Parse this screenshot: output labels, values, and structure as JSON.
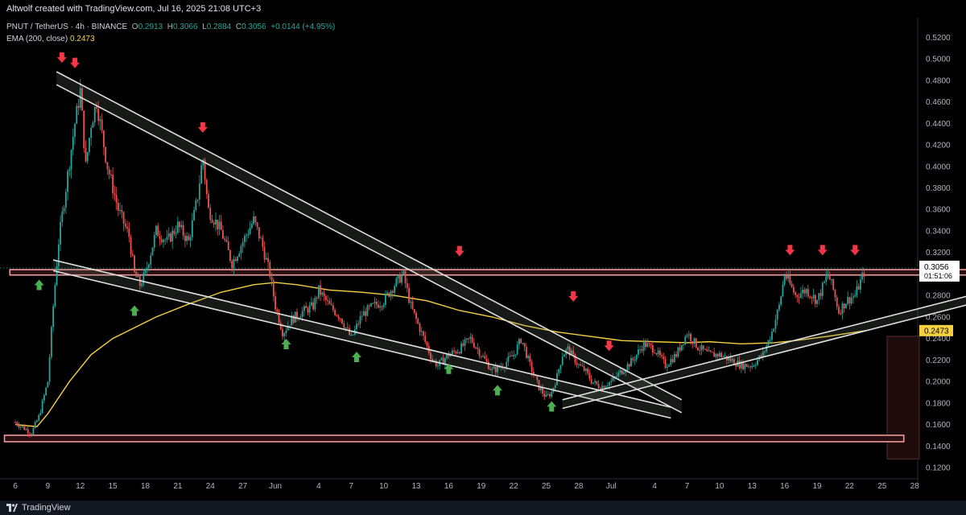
{
  "header": {
    "caption": "Altwolf created with TradingView.com, Jul 16, 2025 21:08 UTC+3"
  },
  "legend": {
    "symbol": "PNUT / TetherUS · 4h · BINANCE",
    "o_label": "O",
    "o_value": "0.2913",
    "h_label": "H",
    "h_value": "0.3066",
    "l_label": "L",
    "l_value": "0.2884",
    "c_label": "C",
    "c_value": "0.3056",
    "change": "+0.0144 (+4.95%)",
    "ema_label": "EMA (200, close)",
    "ema_value": "0.2473"
  },
  "footer": {
    "brand": "TradingView"
  },
  "colors": {
    "up": "#26a69a",
    "down": "#ef5350",
    "ema": "#f5d142",
    "zone": "#ef9a9a",
    "arrow_down": "#f23645",
    "arrow_up": "#4caf50",
    "label_bg": "#ffffff"
  },
  "chart_data": {
    "type": "candlestick",
    "ylim": [
      0.12,
      0.53
    ],
    "y_ticks": [
      "0.5200",
      "0.5000",
      "0.4800",
      "0.4600",
      "0.4400",
      "0.4200",
      "0.4000",
      "0.3800",
      "0.3600",
      "0.3400",
      "0.3200",
      "0.3000",
      "0.2800",
      "0.2600",
      "0.2400",
      "0.2200",
      "0.2000",
      "0.1800",
      "0.1600",
      "0.1400",
      "0.1200"
    ],
    "x_ticks": [
      "6",
      "9",
      "12",
      "15",
      "18",
      "21",
      "24",
      "27",
      "Jun",
      "4",
      "7",
      "10",
      "13",
      "16",
      "19",
      "22",
      "25",
      "28",
      "Jul",
      "4",
      "7",
      "10",
      "13",
      "16",
      "19",
      "22",
      "25",
      "28"
    ],
    "price_labels": [
      {
        "text": "0.3056",
        "sub": "01:51:06",
        "value": 0.3056
      },
      {
        "text": "0.2473",
        "value": 0.2473
      }
    ],
    "close_path": [
      [
        6,
        0.162
      ],
      [
        7.5,
        0.152
      ],
      [
        8.2,
        0.168
      ],
      [
        9,
        0.2
      ],
      [
        9.5,
        0.27
      ],
      [
        10,
        0.33
      ],
      [
        10.8,
        0.39
      ],
      [
        11.5,
        0.44
      ],
      [
        12,
        0.47
      ],
      [
        12.5,
        0.4
      ],
      [
        13,
        0.44
      ],
      [
        13.5,
        0.46
      ],
      [
        14,
        0.43
      ],
      [
        14.5,
        0.4
      ],
      [
        15,
        0.38
      ],
      [
        15.5,
        0.36
      ],
      [
        16.5,
        0.335
      ],
      [
        17,
        0.3
      ],
      [
        17.5,
        0.29
      ],
      [
        18,
        0.3
      ],
      [
        19,
        0.34
      ],
      [
        20,
        0.33
      ],
      [
        21,
        0.345
      ],
      [
        22,
        0.33
      ],
      [
        22.8,
        0.37
      ],
      [
        23.3,
        0.41
      ],
      [
        23.8,
        0.36
      ],
      [
        25,
        0.34
      ],
      [
        26,
        0.31
      ],
      [
        27,
        0.33
      ],
      [
        28,
        0.35
      ],
      [
        28.7,
        0.33
      ],
      [
        29.5,
        0.3
      ],
      [
        30,
        0.27
      ],
      [
        30.7,
        0.245
      ],
      [
        31.5,
        0.258
      ],
      [
        32.5,
        0.265
      ],
      [
        33.5,
        0.27
      ],
      [
        34,
        0.285
      ],
      [
        35,
        0.27
      ],
      [
        36,
        0.26
      ],
      [
        37,
        0.24
      ],
      [
        38,
        0.262
      ],
      [
        39,
        0.27
      ],
      [
        40,
        0.275
      ],
      [
        41,
        0.29
      ],
      [
        41.8,
        0.3
      ],
      [
        42.5,
        0.27
      ],
      [
        43.5,
        0.245
      ],
      [
        44.5,
        0.22
      ],
      [
        45,
        0.215
      ],
      [
        46,
        0.225
      ],
      [
        47,
        0.23
      ],
      [
        48,
        0.24
      ],
      [
        49,
        0.225
      ],
      [
        50,
        0.21
      ],
      [
        51,
        0.215
      ],
      [
        52,
        0.225
      ],
      [
        52.7,
        0.24
      ],
      [
        53.5,
        0.215
      ],
      [
        54.3,
        0.195
      ],
      [
        55,
        0.185
      ],
      [
        55.5,
        0.19
      ],
      [
        56,
        0.205
      ],
      [
        56.5,
        0.225
      ],
      [
        57,
        0.23
      ],
      [
        58,
        0.215
      ],
      [
        58.6,
        0.21
      ],
      [
        59.2,
        0.2
      ],
      [
        60,
        0.195
      ],
      [
        61,
        0.2
      ],
      [
        62,
        0.21
      ],
      [
        63,
        0.22
      ],
      [
        64,
        0.235
      ],
      [
        65,
        0.23
      ],
      [
        66,
        0.215
      ],
      [
        67,
        0.225
      ],
      [
        68,
        0.245
      ],
      [
        69,
        0.232
      ],
      [
        70,
        0.225
      ],
      [
        71,
        0.225
      ],
      [
        72,
        0.22
      ],
      [
        73,
        0.215
      ],
      [
        74,
        0.215
      ],
      [
        75,
        0.225
      ],
      [
        75.8,
        0.245
      ],
      [
        76.5,
        0.27
      ],
      [
        77,
        0.3
      ],
      [
        77.5,
        0.29
      ],
      [
        78,
        0.28
      ],
      [
        79,
        0.285
      ],
      [
        80,
        0.275
      ],
      [
        81,
        0.3
      ],
      [
        81.5,
        0.285
      ],
      [
        82,
        0.265
      ],
      [
        82.7,
        0.275
      ],
      [
        83.5,
        0.28
      ],
      [
        84.5,
        0.3056
      ]
    ],
    "ema": [
      [
        6,
        0.16
      ],
      [
        8,
        0.158
      ],
      [
        9,
        0.17
      ],
      [
        11,
        0.2
      ],
      [
        13,
        0.225
      ],
      [
        15,
        0.24
      ],
      [
        17,
        0.25
      ],
      [
        19,
        0.26
      ],
      [
        22,
        0.272
      ],
      [
        25,
        0.283
      ],
      [
        28,
        0.29
      ],
      [
        30,
        0.292
      ],
      [
        32,
        0.29
      ],
      [
        35,
        0.285
      ],
      [
        38,
        0.283
      ],
      [
        41,
        0.28
      ],
      [
        44,
        0.275
      ],
      [
        47,
        0.266
      ],
      [
        50,
        0.26
      ],
      [
        53,
        0.252
      ],
      [
        56,
        0.246
      ],
      [
        59,
        0.242
      ],
      [
        62,
        0.238
      ],
      [
        65,
        0.237
      ],
      [
        68,
        0.236
      ],
      [
        70,
        0.237
      ],
      [
        73,
        0.235
      ],
      [
        76,
        0.236
      ],
      [
        78,
        0.238
      ],
      [
        81,
        0.242
      ],
      [
        84.5,
        0.2473
      ]
    ],
    "zones": [
      {
        "name": "resistance",
        "y0": 0.299,
        "y1": 0.304,
        "x0": 5.5,
        "x1": 98.5
      },
      {
        "name": "support",
        "y0": 0.144,
        "y1": 0.15,
        "x0": 5,
        "x1": 88
      }
    ],
    "channels": [
      {
        "p1": [
          9.8,
          0.488
        ],
        "p2": [
          67.5,
          0.183
        ],
        "offset": 0.012
      },
      {
        "p1": [
          9.5,
          0.313
        ],
        "p2": [
          66.5,
          0.176
        ],
        "offset": 0.01
      },
      {
        "p1": [
          56.5,
          0.183
        ],
        "p2": [
          98,
          0.29
        ],
        "offset": 0.008
      }
    ],
    "arrows_down": [
      [
        10.3,
        0.5
      ],
      [
        11.5,
        0.495
      ],
      [
        23.3,
        0.435
      ],
      [
        47,
        0.32
      ],
      [
        57.5,
        0.278
      ],
      [
        60.8,
        0.232
      ],
      [
        77.5,
        0.321
      ],
      [
        80.5,
        0.321
      ],
      [
        83.5,
        0.321
      ]
    ],
    "arrows_up": [
      [
        8.2,
        0.291
      ],
      [
        17,
        0.267
      ],
      [
        31,
        0.236
      ],
      [
        37.5,
        0.224
      ],
      [
        46,
        0.213
      ],
      [
        50.5,
        0.193
      ],
      [
        55.5,
        0.178
      ]
    ],
    "volume_box": {
      "x0": 90,
      "x1": 94,
      "y0": 0.128,
      "y1": 0.242
    }
  }
}
